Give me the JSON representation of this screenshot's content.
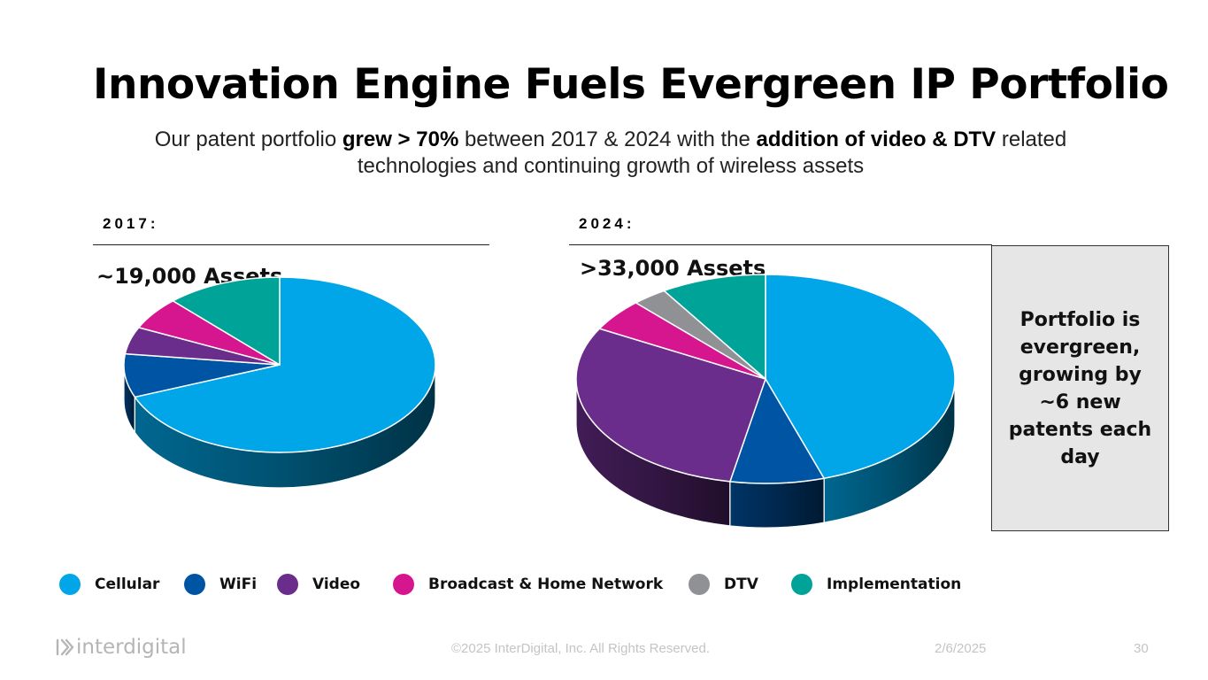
{
  "slide": {
    "title": "Innovation Engine Fuels Evergreen IP Portfolio",
    "subtitle": {
      "part1": "Our patent portfolio ",
      "bold1": "grew > 70%",
      "part2": " between 2017 & 2024 with the ",
      "bold2": "addition of video & DTV",
      "part3": " related technologies and continuing growth of wireless assets"
    },
    "callout": "Portfolio is evergreen, growing by ~6 new patents each day"
  },
  "footer": {
    "logo": "interdigital",
    "copyright": "©2025 InterDigital, Inc. All Rights Reserved.",
    "date": "2/6/2025",
    "page": "30"
  },
  "colors": {
    "Cellular": "#00a6e8",
    "WiFi": "#0054a4",
    "Video": "#6b2d8c",
    "Broadcast & Home Network": "#d6168f",
    "DTV": "#8f9194",
    "Implementation": "#00a398"
  },
  "chart_data": [
    {
      "type": "pie",
      "title": "2017:",
      "subtitle": "~19,000 Assets",
      "categories": [
        "Cellular",
        "WiFi",
        "Video",
        "Broadcast & Home Network",
        "Implementation"
      ],
      "values": [
        69,
        8,
        5,
        6,
        12
      ],
      "unit": "% of assets (estimated)"
    },
    {
      "type": "pie",
      "title": "2024:",
      "subtitle": ">33,000 Assets",
      "categories": [
        "Cellular",
        "WiFi",
        "Video",
        "Broadcast & Home Network",
        "DTV",
        "Implementation"
      ],
      "values": [
        45,
        8,
        30,
        5,
        3,
        9
      ],
      "unit": "% of assets (estimated)"
    }
  ],
  "legend": [
    "Cellular",
    "WiFi",
    "Video",
    "Broadcast & Home Network",
    "DTV",
    "Implementation"
  ]
}
